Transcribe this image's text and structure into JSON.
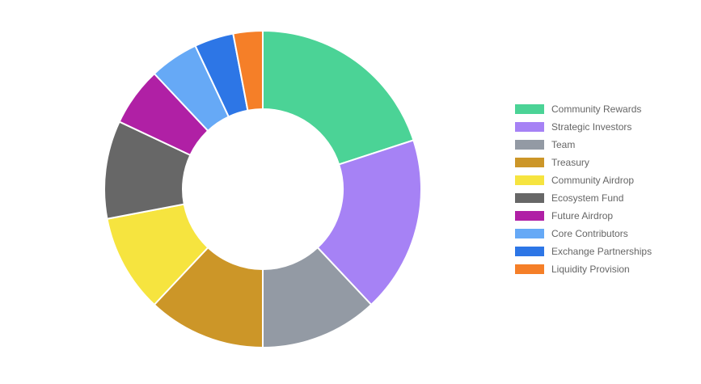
{
  "chart_data": {
    "type": "pie",
    "variant": "doughnut",
    "title": "",
    "legend_position": "right",
    "slices": [
      {
        "label": "Community Rewards",
        "value": 20,
        "color": "#4bd396"
      },
      {
        "label": "Strategic Investors",
        "value": 18,
        "color": "#a682f5"
      },
      {
        "label": "Team",
        "value": 12,
        "color": "#939aa4"
      },
      {
        "label": "Treasury",
        "value": 12,
        "color": "#cc9628"
      },
      {
        "label": "Community Airdrop",
        "value": 10,
        "color": "#f6e43f"
      },
      {
        "label": "Ecosystem Fund",
        "value": 10,
        "color": "#676767"
      },
      {
        "label": "Future Airdrop",
        "value": 6,
        "color": "#b020a5"
      },
      {
        "label": "Core Contributors",
        "value": 5,
        "color": "#66a9f6"
      },
      {
        "label": "Exchange Partnerships",
        "value": 4,
        "color": "#2d76e6"
      },
      {
        "label": "Liquidity Provision",
        "value": 3,
        "color": "#f57f28"
      }
    ]
  }
}
